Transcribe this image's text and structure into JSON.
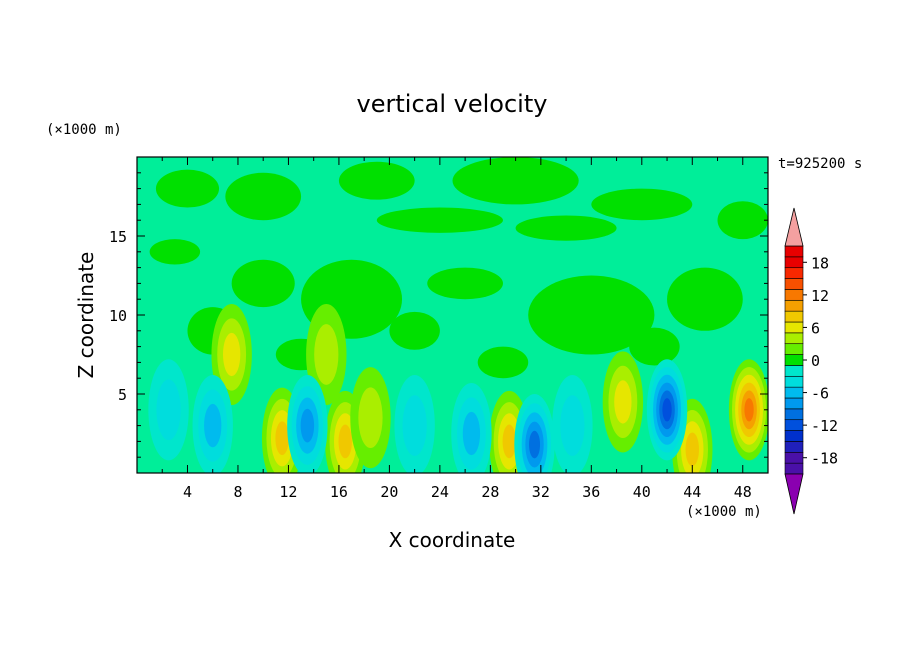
{
  "chart_data": {
    "type": "heatmap",
    "title": "vertical velocity",
    "xlabel": "X coordinate",
    "ylabel": "Z coordinate",
    "x_unit": "(×1000 m)",
    "y_unit": "(×1000 m)",
    "time_label": "t=925200 s",
    "xlim": [
      0,
      50
    ],
    "ylim": [
      0,
      20
    ],
    "x_ticks": [
      "4",
      "8",
      "12",
      "16",
      "20",
      "24",
      "28",
      "32",
      "36",
      "40",
      "44",
      "48"
    ],
    "y_ticks": [
      "5",
      "10",
      "15"
    ],
    "colorbar": {
      "range": [
        -21,
        21
      ],
      "interval": 2,
      "tick_labels": [
        "18",
        "12",
        "6",
        "0",
        "-6",
        "-12",
        "-18"
      ],
      "extend": "both"
    },
    "features": [
      {
        "kind": "updraft",
        "x": 11.5,
        "z": 2.2,
        "peak": 8
      },
      {
        "kind": "updraft",
        "x": 16.5,
        "z": 2.0,
        "peak": 7
      },
      {
        "kind": "updraft",
        "x": 18.5,
        "z": 3.5,
        "peak": 3
      },
      {
        "kind": "updraft",
        "x": 29.5,
        "z": 2.0,
        "peak": 7
      },
      {
        "kind": "updraft",
        "x": 38.5,
        "z": 4.5,
        "peak": 5
      },
      {
        "kind": "updraft",
        "x": 44.0,
        "z": 1.5,
        "peak": 7
      },
      {
        "kind": "updraft",
        "x": 48.5,
        "z": 4.0,
        "peak": 11
      },
      {
        "kind": "updraft",
        "x": 7.5,
        "z": 7.5,
        "peak": 5
      },
      {
        "kind": "updraft",
        "x": 15.0,
        "z": 7.5,
        "peak": 4
      },
      {
        "kind": "downdraft",
        "x": 6.0,
        "z": 3.0,
        "peak": -6
      },
      {
        "kind": "downdraft",
        "x": 13.5,
        "z": 3.0,
        "peak": -8
      },
      {
        "kind": "downdraft",
        "x": 22.0,
        "z": 3.0,
        "peak": -4
      },
      {
        "kind": "downdraft",
        "x": 26.5,
        "z": 2.5,
        "peak": -5
      },
      {
        "kind": "downdraft",
        "x": 31.5,
        "z": 1.8,
        "peak": -10
      },
      {
        "kind": "downdraft",
        "x": 34.5,
        "z": 3.0,
        "peak": -4
      },
      {
        "kind": "downdraft",
        "x": 42.0,
        "z": 4.0,
        "peak": -11
      },
      {
        "kind": "downdraft",
        "x": 2.5,
        "z": 4.0,
        "peak": -3
      }
    ],
    "colors": {
      "positive": [
        "#00e000",
        "#66ee00",
        "#aaee00",
        "#e6e600",
        "#f0c800",
        "#f5a000",
        "#f87800",
        "#f85000",
        "#f82800",
        "#e80000"
      ],
      "negative": [
        "#00ee99",
        "#00e6cc",
        "#00dddd",
        "#00bbee",
        "#0099ee",
        "#0070e0",
        "#0050dd",
        "#0030cc",
        "#2020bb",
        "#4a10a8"
      ],
      "over": "#f4a0a0",
      "under": "#8a00b0"
    }
  }
}
